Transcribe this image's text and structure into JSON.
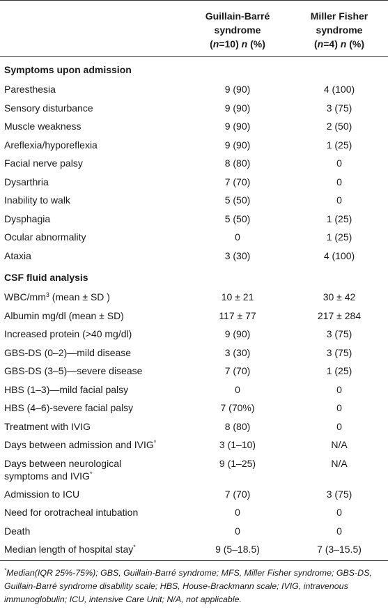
{
  "header": {
    "col2_line1": "Guillain-Barré",
    "col2_line2": "syndrome",
    "col2_n": "n",
    "col2_eq": "=10) ",
    "col2_pct": " (%)",
    "col3_line1": "Miller Fisher",
    "col3_line2": "syndrome",
    "col3_n": "n",
    "col3_eq": "=4) ",
    "col3_pct": " (%)",
    "open_paren": "(",
    "n_italic": "n"
  },
  "sections": {
    "symptoms": "Symptoms upon admission",
    "csf": "CSF fluid analysis"
  },
  "symptoms_rows": [
    {
      "label": "Paresthesia",
      "gbs": "9 (90)",
      "mfs": "4 (100)"
    },
    {
      "label": "Sensory disturbance",
      "gbs": "9 (90)",
      "mfs": "3 (75)"
    },
    {
      "label": "Muscle weakness",
      "gbs": "9 (90)",
      "mfs": "2 (50)"
    },
    {
      "label": "Areflexia/hyporeflexia",
      "gbs": "9 (90)",
      "mfs": "1 (25)"
    },
    {
      "label": "Facial nerve palsy",
      "gbs": "8 (80)",
      "mfs": "0"
    },
    {
      "label": "Dysarthria",
      "gbs": "7 (70)",
      "mfs": "0"
    },
    {
      "label": "Inability to walk",
      "gbs": "5 (50)",
      "mfs": "0"
    },
    {
      "label": "Dysphagia",
      "gbs": "5 (50)",
      "mfs": "1 (25)"
    },
    {
      "label": "Ocular abnormality",
      "gbs": "0",
      "mfs": "1 (25)"
    },
    {
      "label": "Ataxia",
      "gbs": "3 (30)",
      "mfs": "4 (100)"
    }
  ],
  "csf_rows": [
    {
      "label_pre": "WBC/mm",
      "label_sup": "3",
      "label_post": " (mean ± SD )",
      "gbs": "10 ± 21",
      "mfs": "30 ± 42"
    },
    {
      "label": "Albumin mg/dl (mean ± SD)",
      "gbs": "117 ± 77",
      "mfs": "217 ± 284"
    },
    {
      "label": "Increased protein (>40 mg/dl)",
      "gbs": "9 (90)",
      "mfs": "3 (75)"
    },
    {
      "label": "GBS-DS (0–2)—mild disease",
      "gbs": "3 (30)",
      "mfs": "3 (75)"
    },
    {
      "label": "GBS-DS (3–5)—severe disease",
      "gbs": "7 (70)",
      "mfs": "1 (25)"
    },
    {
      "label": "HBS (1–3)—mild facial palsy",
      "gbs": "0",
      "mfs": "0"
    },
    {
      "label": "HBS (4–6)-severe facial palsy",
      "gbs": "7 (70%)",
      "mfs": "0"
    },
    {
      "label": "Treatment with IVIG",
      "gbs": "8 (80)",
      "mfs": "0"
    },
    {
      "label_pre": "Days between admission and IVIG",
      "label_sup": "*",
      "label_post": "",
      "gbs": "3 (1–10)",
      "mfs": "N/A"
    },
    {
      "label_line1": "Days between neurological",
      "label_line2_pre": "symptoms and IVIG",
      "label_sup": "*",
      "gbs": "9 (1–25)",
      "mfs": "N/A"
    },
    {
      "label": "Admission to ICU",
      "gbs": "7 (70)",
      "mfs": "3 (75)"
    },
    {
      "label": "Need for orotracheal intubation",
      "gbs": "0",
      "mfs": "0"
    },
    {
      "label": "Death",
      "gbs": "0",
      "mfs": "0"
    },
    {
      "label_pre": "Median length of hospital stay",
      "label_sup": "*",
      "label_post": "",
      "gbs": "9 (5–18.5)",
      "mfs": "7 (3–15.5)"
    }
  ],
  "footnote": {
    "marker": "*",
    "text": "Median(IQR 25%-75%); GBS, Guillain-Barré syndrome; MFS, Miller Fisher syndrome; GBS-DS, Guillain-Barré syndrome disability scale; HBS, House-Brackmann scale; IVIG, intravenous immunoglobulin; ICU, intensive Care Unit; N/A, not applicable."
  }
}
